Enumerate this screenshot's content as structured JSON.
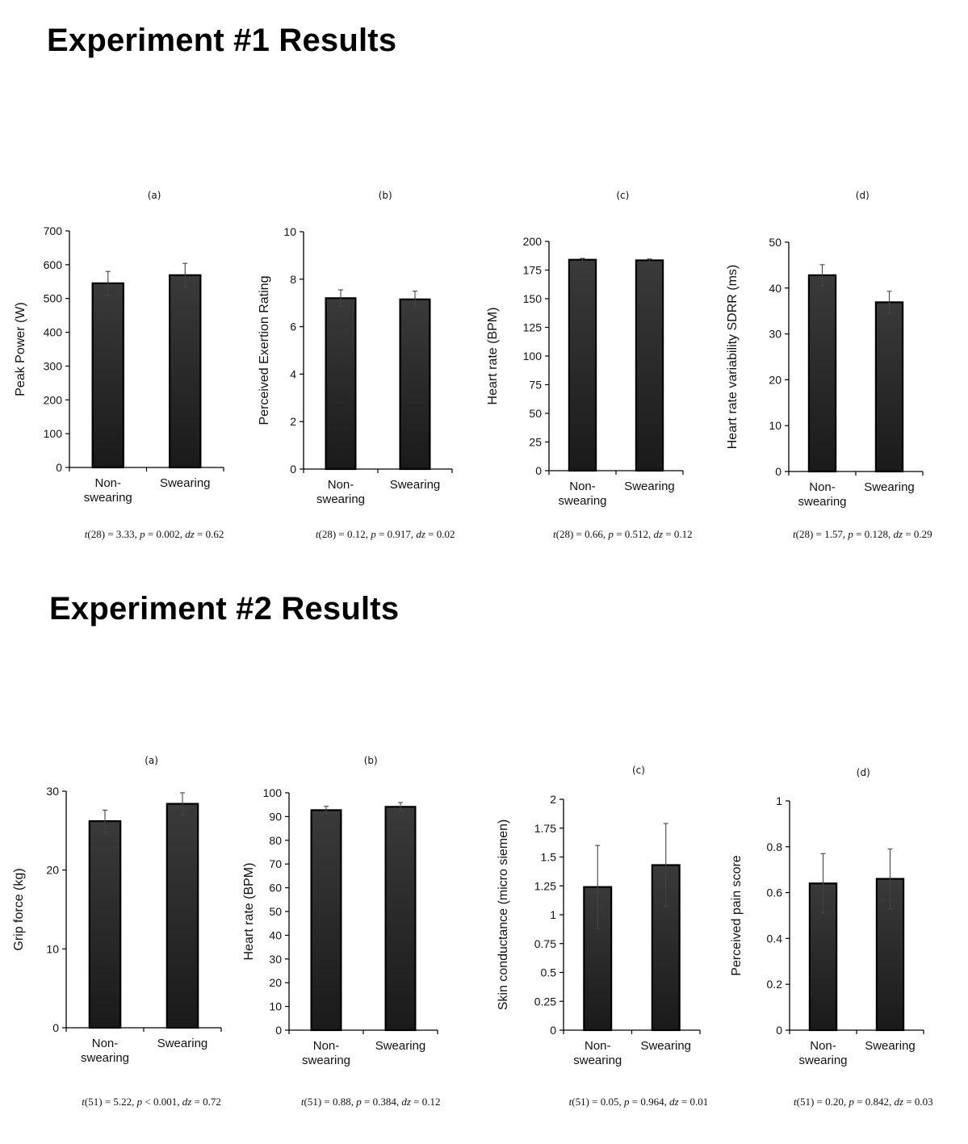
{
  "sections": [
    {
      "title": "Experiment #1 Results"
    },
    {
      "title": "Experiment #2 Results"
    }
  ],
  "colors": {
    "bar_fill_top": "#3a3a3a",
    "bar_fill_bottom": "#1a1a1a",
    "bar_stroke": "#000000",
    "axis": "#000000",
    "error_bar": "#444444"
  },
  "chart_data": [
    {
      "type": "bar",
      "section": "Experiment #1 Results",
      "panel": "(a)",
      "categories": [
        "Non-\nswearing",
        "Swearing"
      ],
      "values": [
        545,
        569
      ],
      "errors": [
        35,
        35
      ],
      "ylabel": "Peak Power (W)",
      "ylim": [
        0,
        700
      ],
      "yticks": [
        0,
        100,
        200,
        300,
        400,
        500,
        600,
        700
      ],
      "yticklabels": [
        "0",
        "100",
        "200",
        "300",
        "400",
        "500",
        "600",
        "700"
      ],
      "stats": {
        "df": "28",
        "t": "3.33",
        "p_op": "=",
        "p": "0.002",
        "dz": "0.62"
      }
    },
    {
      "type": "bar",
      "section": "Experiment #1 Results",
      "panel": "(b)",
      "categories": [
        "Non-\nswearing",
        "Swearing"
      ],
      "values": [
        7.2,
        7.15
      ],
      "errors": [
        0.35,
        0.35
      ],
      "ylabel": "Perceived Exertion Rating",
      "ylim": [
        0,
        10
      ],
      "yticks": [
        0,
        2,
        4,
        6,
        8,
        10
      ],
      "yticklabels": [
        "0",
        "2",
        "4",
        "6",
        "8",
        "10"
      ],
      "stats": {
        "df": "28",
        "t": "0.12",
        "p_op": "=",
        "p": "0.917",
        "dz": "0.02"
      }
    },
    {
      "type": "bar",
      "section": "Experiment #1 Results",
      "panel": "(c)",
      "categories": [
        "Non-\nswearing",
        "Swearing"
      ],
      "values": [
        184,
        183.5
      ],
      "errors": [
        1.2,
        1.2
      ],
      "ylabel": "Heart rate (BPM)",
      "ylim": [
        0,
        200
      ],
      "yticks": [
        0,
        25,
        50,
        75,
        100,
        125,
        150,
        175,
        200
      ],
      "yticklabels": [
        "0",
        "25",
        "50",
        "75",
        "100",
        "125",
        "150",
        "175",
        "200"
      ],
      "stats": {
        "df": "28",
        "t": "0.66",
        "p_op": "=",
        "p": "0.512",
        "dz": "0.12"
      }
    },
    {
      "type": "bar",
      "section": "Experiment #1 Results",
      "panel": "(d)",
      "categories": [
        "Non-\nswearing",
        "Swearing"
      ],
      "values": [
        42.8,
        36.9
      ],
      "errors": [
        2.3,
        2.4
      ],
      "ylabel": "Heart rate variability SDRR (ms)",
      "ylim": [
        0,
        50
      ],
      "yticks": [
        0,
        10,
        20,
        30,
        40,
        50
      ],
      "yticklabels": [
        "0",
        "10",
        "20",
        "30",
        "40",
        "50"
      ],
      "stats": {
        "df": "28",
        "t": "1.57",
        "p_op": "=",
        "p": "0.128",
        "dz": "0.29"
      }
    },
    {
      "type": "bar",
      "section": "Experiment #2 Results",
      "panel": "(a)",
      "categories": [
        "Non-\nswearing",
        "Swearing"
      ],
      "values": [
        26.2,
        28.4
      ],
      "errors": [
        1.4,
        1.4
      ],
      "ylabel": "Grip force (kg)",
      "ylim": [
        0,
        30
      ],
      "yticks": [
        0,
        10,
        20,
        30
      ],
      "yticklabels": [
        "0",
        "10",
        "20",
        "30"
      ],
      "stats": {
        "df": "51",
        "t": "5.22",
        "p_op": "<",
        "p": "0.001",
        "dz": "0.72"
      }
    },
    {
      "type": "bar",
      "section": "Experiment #2 Results",
      "panel": "(b)",
      "categories": [
        "Non-\nswearing",
        "Swearing"
      ],
      "values": [
        92.7,
        94.1
      ],
      "errors": [
        1.6,
        1.8
      ],
      "ylabel": "Heart rate (BPM)",
      "ylim": [
        0,
        100
      ],
      "yticks": [
        0,
        10,
        20,
        30,
        40,
        50,
        60,
        70,
        80,
        90,
        100
      ],
      "yticklabels": [
        "0",
        "10",
        "20",
        "30",
        "40",
        "50",
        "60",
        "70",
        "80",
        "90",
        "100"
      ],
      "stats": {
        "df": "51",
        "t": "0.88",
        "p_op": "=",
        "p": "0.384",
        "dz": "0.12"
      }
    },
    {
      "type": "bar",
      "section": "Experiment #2 Results",
      "panel": "(c)",
      "categories": [
        "Non-\nswearing",
        "Swearing"
      ],
      "values": [
        1.24,
        1.43
      ],
      "errors": [
        0.36,
        0.36
      ],
      "ylabel": "Skin conductance (micro siemen)",
      "ylim": [
        0,
        2
      ],
      "yticks": [
        0,
        0.25,
        0.5,
        0.75,
        1,
        1.25,
        1.5,
        1.75,
        2
      ],
      "yticklabels": [
        "0",
        "0.25",
        "0.5",
        "0.75",
        "1",
        "1.25",
        "1.5",
        "1.75",
        "2"
      ],
      "stats": {
        "df": "51",
        "t": "0.05",
        "p_op": "=",
        "p": "0.964",
        "dz": "0.01"
      }
    },
    {
      "type": "bar",
      "section": "Experiment #2 Results",
      "panel": "(d)",
      "categories": [
        "Non-\nswearing",
        "Swearing"
      ],
      "values": [
        0.64,
        0.66
      ],
      "errors": [
        0.13,
        0.13
      ],
      "ylabel": "Perceived pain score",
      "ylim": [
        0,
        1
      ],
      "yticks": [
        0,
        0.2,
        0.4,
        0.6,
        0.8,
        1
      ],
      "yticklabels": [
        "0",
        "0.2",
        "0.4",
        "0.6",
        "0.8",
        "1"
      ],
      "stats": {
        "df": "51",
        "t": "0.20",
        "p_op": "=",
        "p": "0.842",
        "dz": "0.03"
      }
    }
  ]
}
